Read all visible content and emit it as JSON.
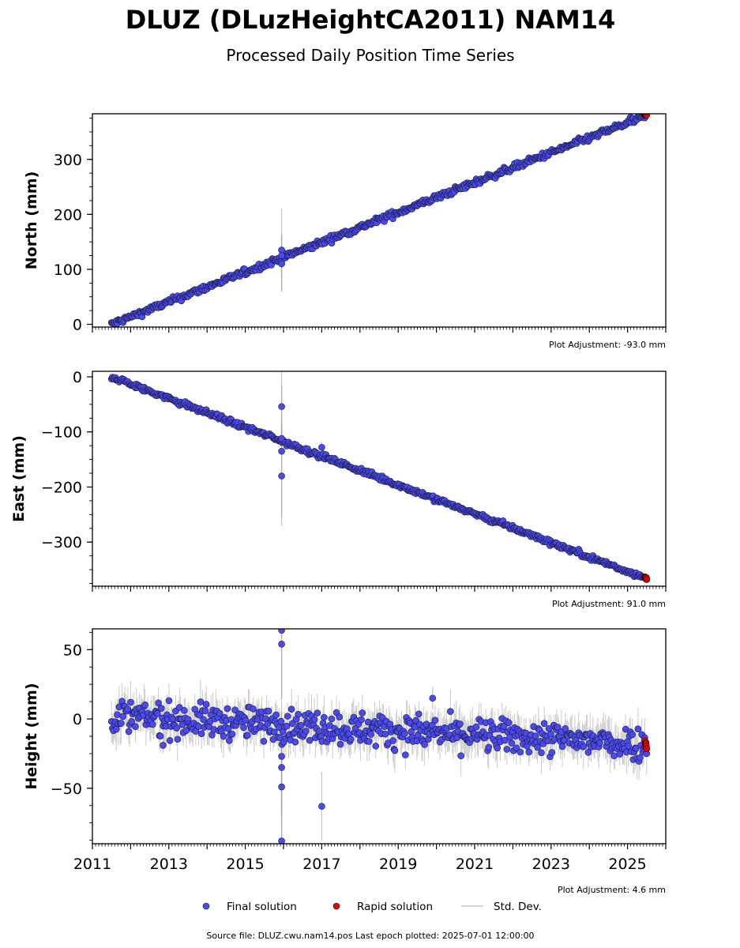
{
  "title": "DLUZ (DLuzHeightCA2011) NAM14",
  "subtitle": "Processed Daily Position Time Series",
  "source_line": "Source file: DLUZ.cwu.nam14.pos  Last epoch plotted: 2025-07-01 12:00:00",
  "legend": [
    {
      "label": "Final solution",
      "color": "#4a4af0",
      "marker": "circle"
    },
    {
      "label": "Rapid solution",
      "color": "#e00000",
      "marker": "circle"
    },
    {
      "label": "Std. Dev.",
      "color": "#c8c8c8",
      "marker": "line"
    }
  ],
  "chart_data": [
    {
      "type": "scatter",
      "ylabel": "North (mm)",
      "adjustment": "Plot Adjustment: -93.0 mm",
      "xlim": [
        2011,
        2026
      ],
      "ylim": [
        -5,
        383
      ],
      "yticks": [
        0,
        100,
        200,
        300
      ],
      "ytick_labels": [
        "0",
        "100",
        "200",
        "300"
      ],
      "show_xtick_labels": false,
      "trend": {
        "x_start": 2011.5,
        "y_start": 0,
        "x_end": 2025.5,
        "y_end": 380
      },
      "noise": 3,
      "outliers": [
        {
          "x": 2015.95,
          "y": 135,
          "err": 75
        },
        {
          "x": 2015.95,
          "y": 110,
          "err": 50
        },
        {
          "x": 2015.95,
          "y": 125,
          "err": 40
        }
      ],
      "rapid": {
        "x_start": 2025.45,
        "x_end": 2025.5,
        "y_start": 380,
        "y_end": 382
      }
    },
    {
      "type": "scatter",
      "ylabel": "East (mm)",
      "adjustment": "Plot Adjustment: 91.0 mm",
      "xlim": [
        2011,
        2026
      ],
      "ylim": [
        -380,
        10
      ],
      "yticks": [
        0,
        -100,
        -200,
        -300
      ],
      "ytick_labels": [
        "0",
        "−100",
        "−200",
        "−300"
      ],
      "show_xtick_labels": false,
      "trend": {
        "x_start": 2011.5,
        "y_start": 0,
        "x_end": 2025.5,
        "y_end": -366
      },
      "noise": 2.5,
      "outliers": [
        {
          "x": 2015.95,
          "y": -54,
          "err": 65
        },
        {
          "x": 2015.95,
          "y": -135,
          "err": 120
        },
        {
          "x": 2015.95,
          "y": -180,
          "err": 90
        },
        {
          "x": 2015.95,
          "y": -112,
          "err": 30
        },
        {
          "x": 2017.0,
          "y": -128,
          "err": 10
        }
      ],
      "rapid": {
        "x_start": 2025.45,
        "x_end": 2025.5,
        "y_start": -364,
        "y_end": -366
      }
    },
    {
      "type": "scatter",
      "ylabel": "Height (mm)",
      "adjustment": "Plot Adjustment: 4.6 mm",
      "xlim": [
        2011,
        2026
      ],
      "ylim": [
        -90,
        65
      ],
      "yticks": [
        50,
        0,
        -50
      ],
      "ytick_labels": [
        "50",
        "0",
        "−50"
      ],
      "show_xtick_labels": true,
      "xticks": [
        2011,
        2013,
        2015,
        2017,
        2019,
        2021,
        2023,
        2025
      ],
      "xtick_labels": [
        "2011",
        "2013",
        "2015",
        "2017",
        "2019",
        "2021",
        "2023",
        "2025"
      ],
      "trend": {
        "x_start": 2011.5,
        "y_start": 2,
        "x_end": 2025.5,
        "y_end": -18
      },
      "noise": 6,
      "outliers": [
        {
          "x": 2015.95,
          "y": 64,
          "err": 50
        },
        {
          "x": 2015.95,
          "y": 54,
          "err": 40
        },
        {
          "x": 2015.95,
          "y": -27,
          "err": 40
        },
        {
          "x": 2015.95,
          "y": -35,
          "err": 40
        },
        {
          "x": 2015.95,
          "y": -49,
          "err": 50
        },
        {
          "x": 2015.95,
          "y": -88,
          "err": 60
        },
        {
          "x": 2017.0,
          "y": -63,
          "err": 25
        },
        {
          "x": 2019.9,
          "y": 15,
          "err": 8
        },
        {
          "x": 2012.85,
          "y": -19,
          "err": 6
        }
      ],
      "rapid": {
        "x_start": 2025.45,
        "x_end": 2025.5,
        "y_start": -16,
        "y_end": -20
      }
    }
  ]
}
